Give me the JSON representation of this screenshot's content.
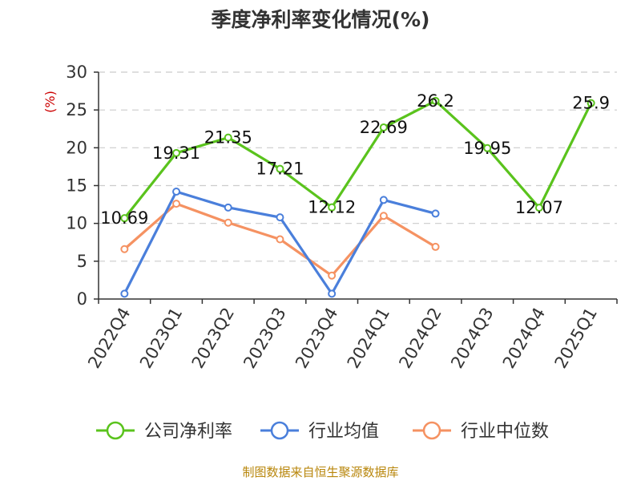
{
  "chart_data": {
    "type": "line",
    "title": "季度净利率变化情况(%)",
    "ylabel": "(%)",
    "xlabel": "",
    "ylim": [
      0,
      30
    ],
    "yticks": [
      0,
      5,
      10,
      15,
      20,
      25,
      30
    ],
    "grid": true,
    "legend_position": "bottom",
    "categories": [
      "2022Q4",
      "2023Q1",
      "2023Q2",
      "2023Q3",
      "2023Q4",
      "2024Q1",
      "2024Q2",
      "2024Q3",
      "2024Q4",
      "2025Q1"
    ],
    "series": [
      {
        "name": "公司净利率",
        "color": "#5ac31d",
        "values": [
          10.69,
          19.31,
          21.35,
          17.21,
          12.12,
          22.69,
          26.2,
          19.95,
          12.07,
          25.9
        ],
        "labels": [
          "10.69",
          "19.31",
          "21.35",
          "17.21",
          "12.12",
          "22.69",
          "26.2",
          "19.95",
          "12.07",
          "25.9"
        ]
      },
      {
        "name": "行业均值",
        "color": "#4a7fdb",
        "values": [
          0.7,
          14.2,
          12.1,
          10.8,
          0.7,
          13.1,
          11.3,
          null,
          null,
          null
        ]
      },
      {
        "name": "行业中位数",
        "color": "#f59262",
        "values": [
          6.6,
          12.6,
          10.1,
          7.9,
          3.1,
          11.0,
          6.9,
          null,
          null,
          null
        ]
      }
    ]
  },
  "footer": {
    "source": "制图数据来自恒生聚源数据库"
  }
}
